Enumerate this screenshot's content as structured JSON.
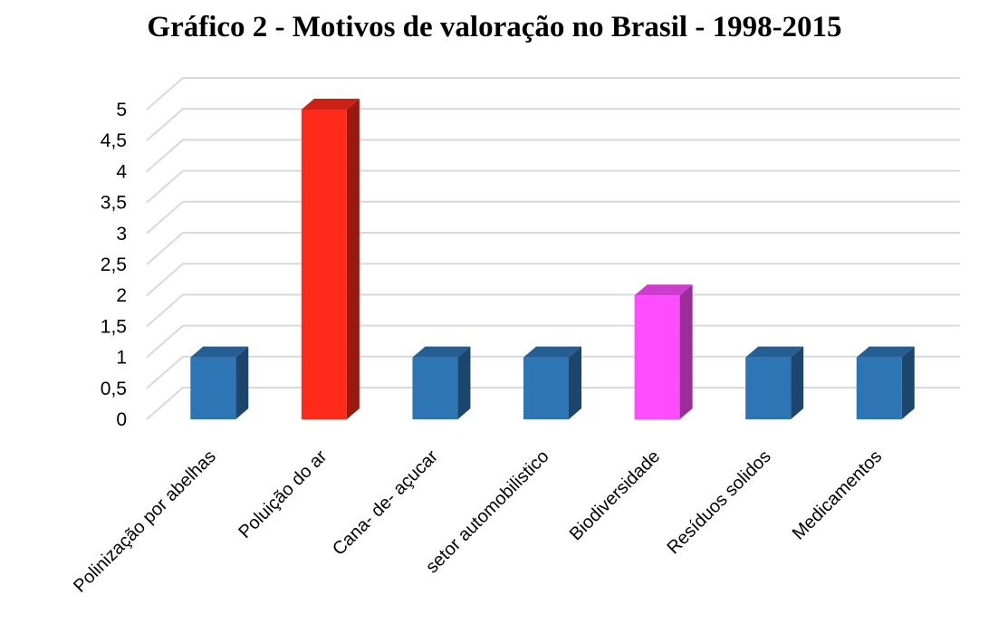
{
  "chart_data": {
    "type": "bar",
    "title": "Gráfico 2 - Motivos de valoração no Brasil - 1998-2015",
    "categories": [
      "Polinização por abelhas",
      "Poluição do ar",
      "Cana- de- açucar",
      "setor automobilistico",
      "Biodiversidade",
      "Resíduos solidos",
      "Medicamentos"
    ],
    "values": [
      1,
      5,
      1,
      1,
      2,
      1,
      1
    ],
    "bar_colors": [
      "#2e75b6",
      "#ff2a1a",
      "#2e75b6",
      "#2e75b6",
      "#ff4cff",
      "#2e75b6",
      "#2e75b6"
    ],
    "ylim": [
      0,
      5
    ],
    "yticks": [
      "0",
      "0,5",
      "1",
      "1,5",
      "2",
      "2,5",
      "3",
      "3,5",
      "4",
      "4,5",
      "5"
    ],
    "grid": true,
    "style": "3d-column",
    "legend": "none"
  }
}
